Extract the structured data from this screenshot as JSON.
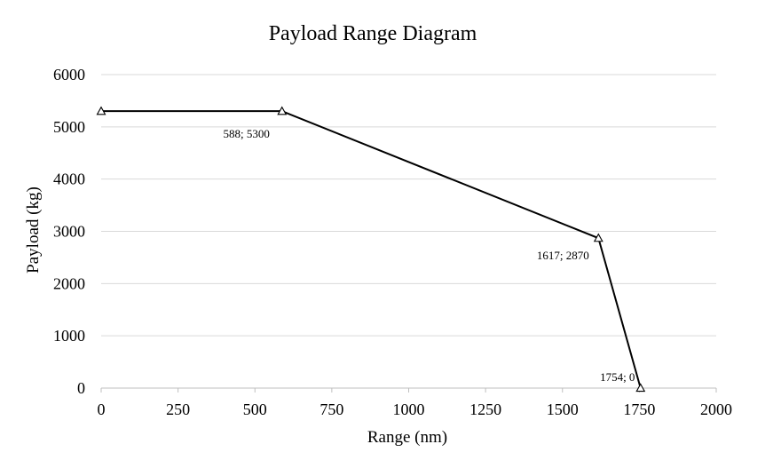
{
  "chart_data": {
    "type": "line",
    "title": "Payload Range Diagram",
    "xlabel": "Range (nm)",
    "ylabel": "Payload (kg)",
    "xlim": [
      0,
      2000
    ],
    "ylim": [
      0,
      6000
    ],
    "xticks": [
      0,
      250,
      500,
      750,
      1000,
      1250,
      1500,
      1750,
      2000
    ],
    "yticks": [
      0,
      1000,
      2000,
      3000,
      4000,
      5000,
      6000
    ],
    "grid": true,
    "legend": "none",
    "series": [
      {
        "color": "#000000",
        "marker": "triangle",
        "points": [
          {
            "x": 0,
            "y": 5300,
            "label": ""
          },
          {
            "x": 588,
            "y": 5300,
            "label": "588; 5300"
          },
          {
            "x": 1617,
            "y": 2870,
            "label": "1617; 2870"
          },
          {
            "x": 1754,
            "y": 0,
            "label": "1754; 0"
          }
        ]
      }
    ]
  }
}
